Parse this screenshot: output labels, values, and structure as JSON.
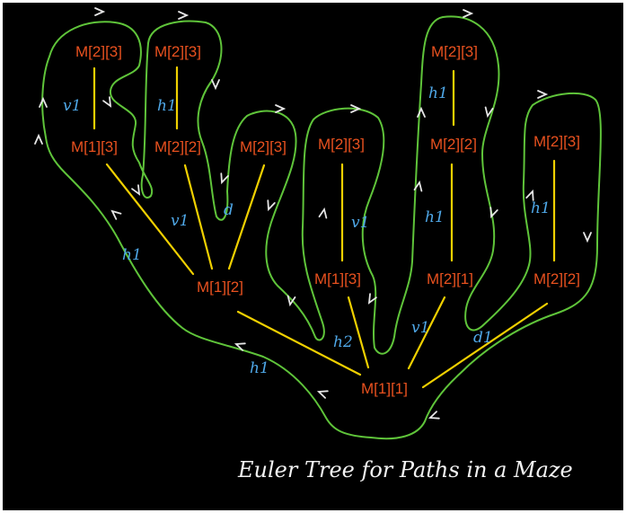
{
  "colors": {
    "background": "#000000",
    "node": "#e8511f",
    "edge": "#f0d000",
    "edge_label": "#4fa8e8",
    "contour": "#5fc43a",
    "arrow": "#e6e6e6",
    "caption": "#f2f2f2"
  },
  "diagram": {
    "caption": "Euler Tree for Paths in a Maze",
    "nodes": [
      {
        "id": "root",
        "label": "M[1][1]"
      },
      {
        "id": "a",
        "label": "M[1][2]"
      },
      {
        "id": "a1",
        "label": "M[1][3]"
      },
      {
        "id": "a1c",
        "label": "M[2][3]"
      },
      {
        "id": "a2",
        "label": "M[2][2]"
      },
      {
        "id": "a2c",
        "label": "M[2][3]"
      },
      {
        "id": "a3",
        "label": "M[2][3]"
      },
      {
        "id": "b",
        "label": "M[1][3]"
      },
      {
        "id": "bc",
        "label": "M[2][3]"
      },
      {
        "id": "c",
        "label": "M[2][1]"
      },
      {
        "id": "c1",
        "label": "M[2][2]"
      },
      {
        "id": "c1c",
        "label": "M[2][3]"
      },
      {
        "id": "d",
        "label": "M[2][2]"
      },
      {
        "id": "dc",
        "label": "M[2][3]"
      }
    ],
    "edges": [
      {
        "from": "root",
        "to": "a",
        "label": ""
      },
      {
        "from": "root",
        "to": "b",
        "label": "h2"
      },
      {
        "from": "root",
        "to": "c",
        "label": "v1"
      },
      {
        "from": "root",
        "to": "d",
        "label": "d1"
      },
      {
        "from": "a",
        "to": "a1",
        "label": "h1"
      },
      {
        "from": "a",
        "to": "a2",
        "label": "v1"
      },
      {
        "from": "a",
        "to": "a3",
        "label": "d"
      },
      {
        "from": "a1",
        "to": "a1c",
        "label": "v1"
      },
      {
        "from": "a2",
        "to": "a2c",
        "label": "h1"
      },
      {
        "from": "b",
        "to": "bc",
        "label": "v1"
      },
      {
        "from": "c",
        "to": "c1",
        "label": "h1"
      },
      {
        "from": "c1",
        "to": "c1c",
        "label": "h1"
      },
      {
        "from": "d",
        "to": "dc",
        "label": "h1"
      }
    ],
    "extra_labels": [
      {
        "id": "root_left",
        "text": "h1"
      }
    ]
  }
}
